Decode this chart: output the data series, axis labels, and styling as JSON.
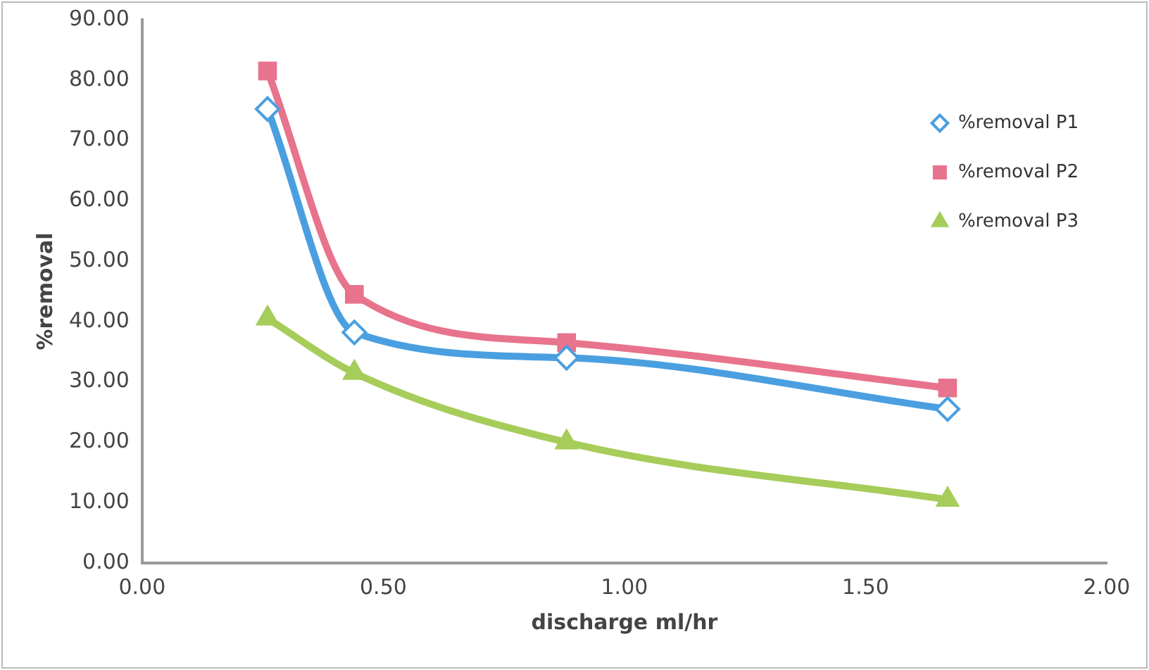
{
  "chart_data": {
    "type": "line",
    "xlabel": "discharge ml/hr",
    "ylabel": "%removal",
    "x": [
      0.26,
      0.44,
      0.88,
      1.67
    ],
    "series": [
      {
        "name": "%removal P1",
        "color": "#4a9fe0",
        "marker": "diamond",
        "values": [
          75.2,
          38.2,
          34.0,
          25.5
        ]
      },
      {
        "name": "%removal P2",
        "color": "#e8738c",
        "marker": "square",
        "values": [
          81.5,
          44.5,
          36.5,
          29.0
        ]
      },
      {
        "name": "%removal P3",
        "color": "#a6cc5a",
        "marker": "triangle",
        "values": [
          40.5,
          31.5,
          20.0,
          10.5
        ]
      }
    ],
    "xlim": [
      0,
      2
    ],
    "xticks": [
      {
        "value": 0,
        "label": "0.00"
      },
      {
        "value": 0.5,
        "label": "0.50"
      },
      {
        "value": 1,
        "label": "1.00"
      },
      {
        "value": 1.5,
        "label": "1.50"
      },
      {
        "value": 2,
        "label": "2.00"
      }
    ],
    "ylim": [
      0,
      90
    ],
    "yticks": [
      {
        "value": 0,
        "label": "0.00"
      },
      {
        "value": 10,
        "label": "10.00"
      },
      {
        "value": 20,
        "label": "20.00"
      },
      {
        "value": 30,
        "label": "30.00"
      },
      {
        "value": 40,
        "label": "40.00"
      },
      {
        "value": 50,
        "label": "50.00"
      },
      {
        "value": 60,
        "label": "60.00"
      },
      {
        "value": 70,
        "label": "70.00"
      },
      {
        "value": 80,
        "label": "80.00"
      },
      {
        "value": 90,
        "label": "90.00"
      }
    ],
    "grid": false,
    "legend": "top right"
  }
}
